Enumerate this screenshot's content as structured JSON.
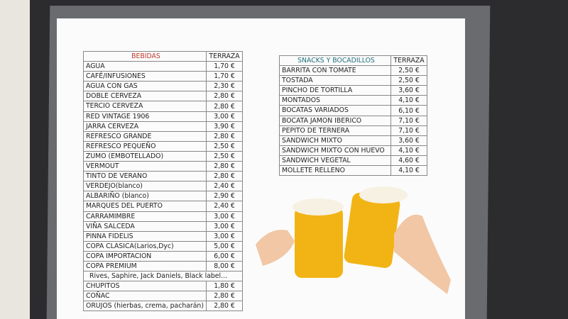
{
  "left_table": {
    "header": [
      "BEBIDAS",
      "TERRAZA"
    ],
    "rows": [
      [
        "AGUA",
        "1,70 €"
      ],
      [
        "CAFÉ/INFUSIONES",
        "1,70 €"
      ],
      [
        "AGUA CON GAS",
        "2,30 €"
      ],
      [
        "DOBLE CERVEZA",
        "2,80 €"
      ],
      [
        "TERCIO CERVEZA",
        "2,80 €"
      ],
      [
        "RED VINTAGE 1906",
        "3,00 €"
      ],
      [
        "JARRA CERVEZA",
        "3,90 €"
      ],
      [
        "REFRESCO GRANDE",
        "2,80 €"
      ],
      [
        "REFRESCO PEQUEÑO",
        "2,50 €"
      ],
      [
        "ZUMO (EMBOTELLADO)",
        "2,50 €"
      ],
      [
        "VERMOUT",
        "2,80 €"
      ],
      [
        "TINTO DE VERANO",
        "2,80 €"
      ],
      [
        "VERDEJO(blanco)",
        "2,40 €"
      ],
      [
        "ALBARIÑO (blanco)",
        "2,90 €"
      ],
      [
        "MARQUES DEL PUERTO",
        "2,40 €"
      ],
      [
        "CARRAMIMBRE",
        "3,00 €"
      ],
      [
        "VIÑA SALCEDA",
        "3,00 €"
      ],
      [
        "PINNA FIDELIS",
        "3,00 €"
      ],
      [
        "COPA CLASICA(Larios,Dyc)",
        "5,00 €"
      ],
      [
        "COPA IMPORTACION",
        "6,00 €"
      ],
      [
        "COPA PREMIUM",
        "8,00 €",
        "Rives, Saphire, Jack Daniels, Black label..."
      ],
      [
        "CHUPITOS",
        "1,80 €"
      ],
      [
        "COÑAC",
        "2,80 €"
      ],
      [
        "ORUJOS (hierbas, crema, pacharán)",
        "2,80 €"
      ]
    ]
  },
  "right_table": {
    "header": [
      "SNACKS Y BOCADILLOS",
      "TERRAZA"
    ],
    "rows": [
      [
        "BARRITA CON TOMATE",
        "2,50 €"
      ],
      [
        "TOSTADA",
        "2,50 €"
      ],
      [
        "PINCHO DE TORTILLA",
        "3,60 €"
      ],
      [
        "MONTADOS",
        "4,10 €"
      ],
      [
        "BOCATAS VARIADOS",
        "6,10 €"
      ],
      [
        "BOCATA JAMON IBERICO",
        "7,10 €"
      ],
      [
        "PEPITO DE TERNERA",
        "7,10 €"
      ],
      [
        "SANDWICH MIXTO",
        "3,60 €"
      ],
      [
        "SANDWICH MIXTO CON HUEVO",
        "4,10 €"
      ],
      [
        "SANDWICH VEGETAL",
        "4,60 €"
      ],
      [
        "MOLLETE RELLENO",
        "4,10 €"
      ]
    ]
  }
}
